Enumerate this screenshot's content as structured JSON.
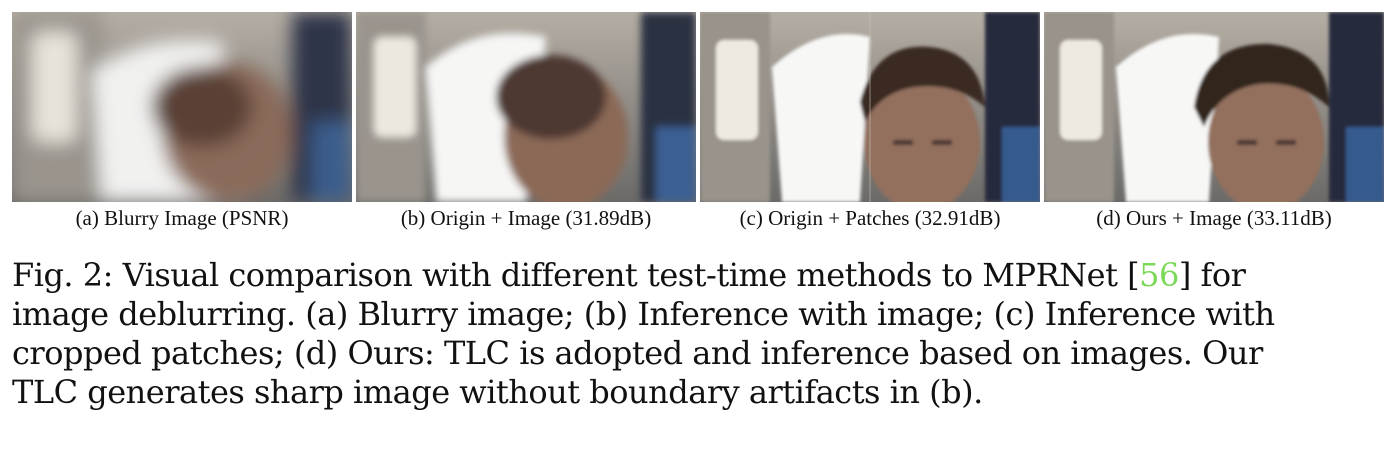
{
  "panels": [
    {
      "id": "a",
      "label": "(a) Blurry Image (PSNR)",
      "blur": "heavy"
    },
    {
      "id": "b",
      "label": "(b) Origin + Image (31.89dB)",
      "blur": "medium"
    },
    {
      "id": "c",
      "label": "(c) Origin + Patches (32.91dB)",
      "blur": "boundary-artifact"
    },
    {
      "id": "d",
      "label": "(d) Ours + Image (33.11dB)",
      "blur": "sharp"
    }
  ],
  "caption": {
    "line1_pre": "Fig. 2: Visual comparison with different test-time methods to MPRNet [",
    "line1_cite": "56",
    "line1_post": "] for",
    "line2": "image deblurring. (a) Blurry image; (b) Inference with image; (c) Inference with",
    "line3": "cropped patches; (d) Ours: TLC is adopted and inference based on images. Our",
    "line4": "TLC generates sharp image without boundary artifacts in (b).",
    "cite_color": "#7bd957"
  }
}
